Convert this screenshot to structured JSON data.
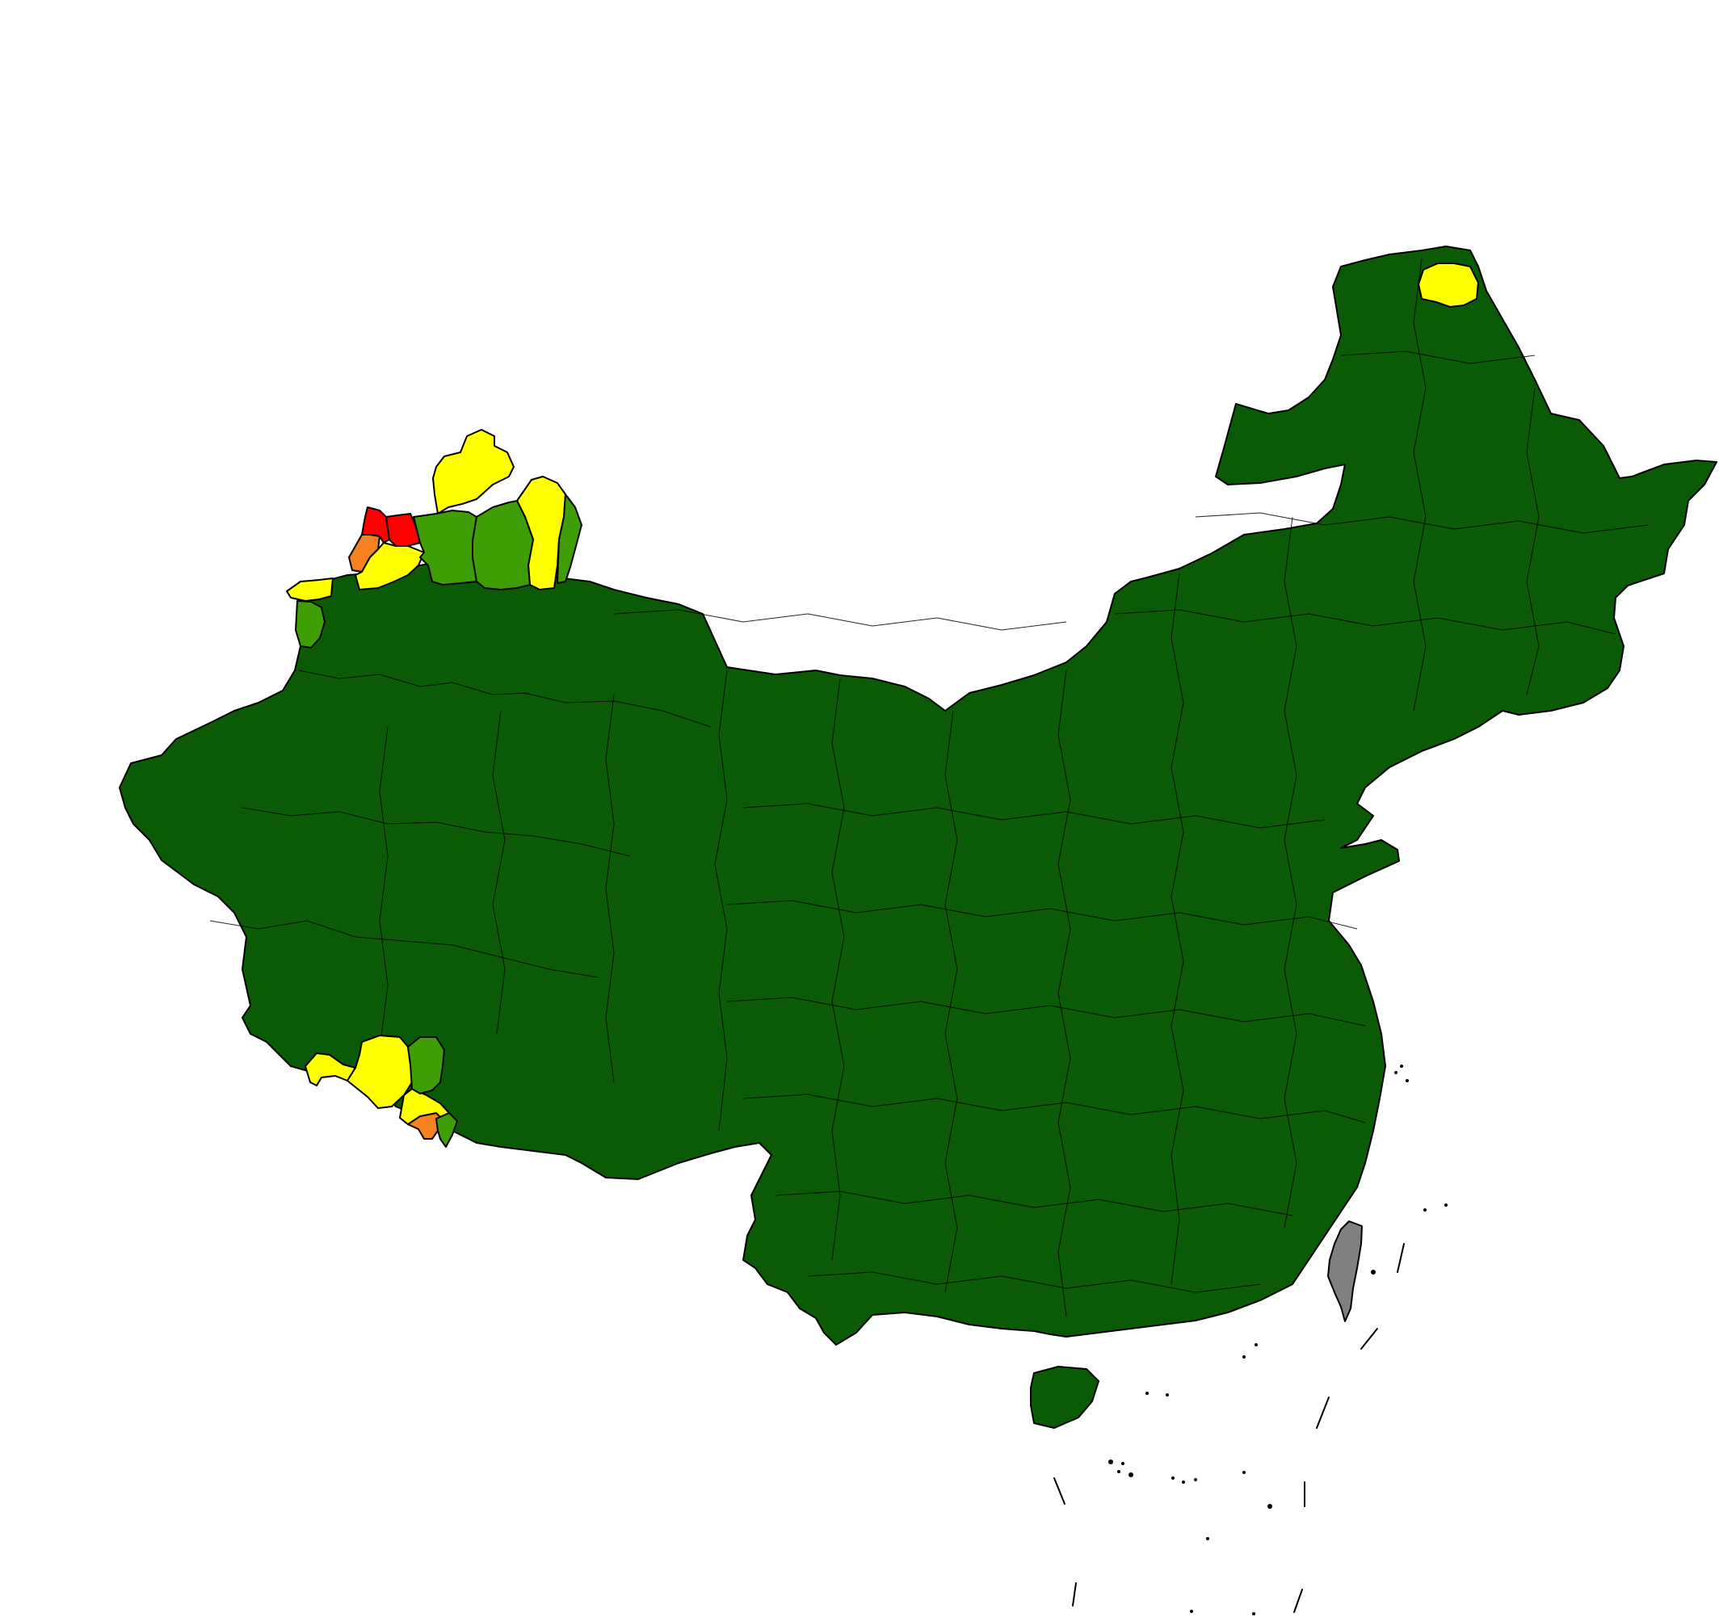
{
  "map": {
    "title": "",
    "legend": [],
    "colors": {
      "background": "#ffffff",
      "border": "#000000",
      "dark_green": "#0b5a05",
      "medium_green": "#3f9e06",
      "yellow": "#ffff00",
      "orange": "#f58220",
      "red": "#ff0000",
      "no_data_gray": "#808080"
    },
    "regions": [
      {
        "id": "mainland",
        "category": "dark_green"
      },
      {
        "id": "hainan",
        "category": "dark_green"
      },
      {
        "id": "taiwan",
        "category": "no_data_gray"
      },
      {
        "id": "nw-red-1",
        "category": "red"
      },
      {
        "id": "nw-orange-1",
        "category": "orange"
      },
      {
        "id": "nw-yellow-1",
        "category": "yellow"
      },
      {
        "id": "nw-yellow-2",
        "category": "yellow"
      },
      {
        "id": "nw-yellow-3",
        "category": "yellow"
      },
      {
        "id": "nw-yellow-4",
        "category": "yellow"
      },
      {
        "id": "nw-green-1",
        "category": "medium_green"
      },
      {
        "id": "nw-green-2",
        "category": "medium_green"
      },
      {
        "id": "nw-green-3",
        "category": "medium_green"
      },
      {
        "id": "ne-yellow-1",
        "category": "yellow"
      },
      {
        "id": "sw-yellow-1",
        "category": "yellow"
      },
      {
        "id": "sw-yellow-2",
        "category": "yellow"
      },
      {
        "id": "sw-yellow-3",
        "category": "yellow"
      },
      {
        "id": "sw-orange-1",
        "category": "orange"
      },
      {
        "id": "sw-green-1",
        "category": "medium_green"
      },
      {
        "id": "sw-green-2",
        "category": "medium_green"
      }
    ]
  }
}
